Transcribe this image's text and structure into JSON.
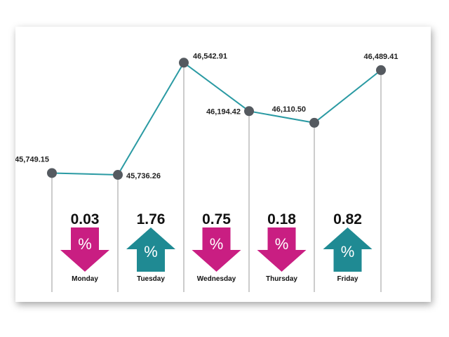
{
  "chart_data": {
    "type": "line",
    "title": "",
    "xlabel": "",
    "ylabel": "",
    "categories": [
      "Monday",
      "Tuesday",
      "Wednesday",
      "Thursday",
      "Friday",
      ""
    ],
    "values": [
      45749.15,
      45736.26,
      46542.91,
      46194.42,
      46110.5,
      46489.41
    ],
    "value_labels": [
      "45,749.15",
      "45,736.26",
      "46,542.91",
      "46,194.42",
      "46,110.50",
      "46,489.41"
    ],
    "ylim": [
      45600,
      46600
    ],
    "daily_change": [
      {
        "day": "Monday",
        "percent": "0.03",
        "direction": "down"
      },
      {
        "day": "Tuesday",
        "percent": "1.76",
        "direction": "up"
      },
      {
        "day": "Wednesday",
        "percent": "0.75",
        "direction": "down"
      },
      {
        "day": "Thursday",
        "percent": "0.18",
        "direction": "down"
      },
      {
        "day": "Friday",
        "percent": "0.82",
        "direction": "up"
      }
    ],
    "percent_symbol": "%",
    "colors": {
      "line": "#2a9aa3",
      "marker": "#555a60",
      "down": "#c91e82",
      "up": "#1f8a93"
    }
  }
}
